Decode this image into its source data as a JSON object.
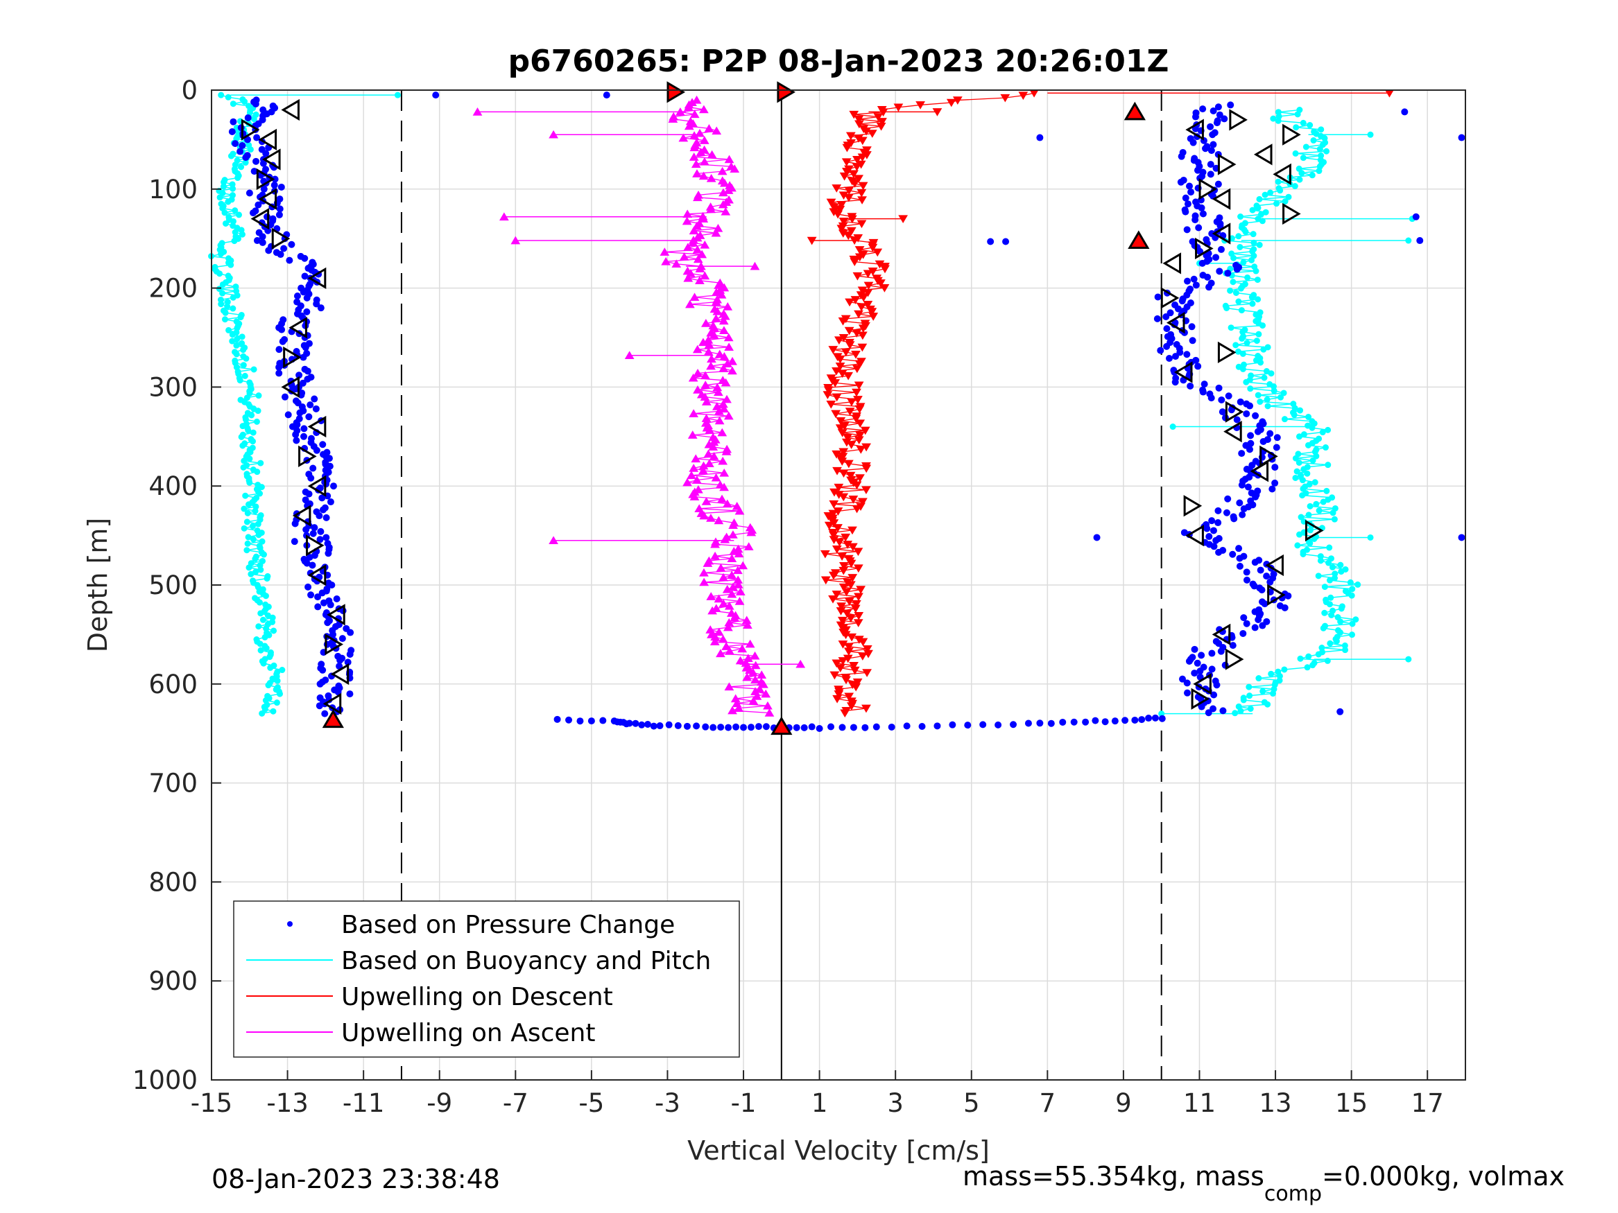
{
  "chart_data": {
    "type": "scatter",
    "title": "p6760265: P2P 08-Jan-2023 20:26:01Z",
    "xlabel": "Vertical Velocity [cm/s]",
    "ylabel": "Depth [m]",
    "xlim": [
      -15,
      18
    ],
    "ylim": [
      1000,
      0
    ],
    "y_reversed": true,
    "xticks": [
      -15,
      -13,
      -11,
      -9,
      -7,
      -5,
      -3,
      -1,
      1,
      3,
      5,
      7,
      9,
      11,
      13,
      15,
      17
    ],
    "xtick_labels": [
      "-15",
      "-13",
      "-11",
      "-9",
      "-7",
      "-5",
      "-3",
      "-1",
      "1",
      "3",
      "5",
      "7",
      "9",
      "11",
      "13",
      "15",
      "17"
    ],
    "yticks": [
      0,
      100,
      200,
      300,
      400,
      500,
      600,
      700,
      800,
      900,
      1000
    ],
    "ytick_labels": [
      "0",
      "100",
      "200",
      "300",
      "400",
      "500",
      "600",
      "700",
      "800",
      "900",
      "1000"
    ],
    "grid": true,
    "legend_position": "bottom-left",
    "reference_lines": [
      {
        "x": -10,
        "style": "dashed",
        "color": "#000000"
      },
      {
        "x": 0,
        "style": "solid",
        "color": "#000000"
      },
      {
        "x": 10,
        "style": "dashed",
        "color": "#000000"
      }
    ],
    "series": [
      {
        "name": "Based on Pressure Change",
        "color": "#0000ff",
        "marker": "dot",
        "descent_profile": {
          "depth": [
            10,
            40,
            80,
            120,
            160,
            190,
            240,
            300,
            350,
            400,
            450,
            500,
            550,
            600,
            630
          ],
          "x": [
            -13.6,
            -14.2,
            -13.6,
            -13.6,
            -13.3,
            -12.2,
            -12.8,
            -12.8,
            -12.4,
            -12.2,
            -12.4,
            -12.2,
            -11.7,
            -11.7,
            -11.9
          ]
        },
        "ascent_profile": {
          "depth": [
            630,
            600,
            560,
            520,
            480,
            450,
            400,
            350,
            320,
            290,
            240,
            210,
            180,
            150,
            110,
            80,
            40,
            15
          ],
          "x": [
            11.2,
            11.0,
            11.4,
            13.0,
            12.4,
            11.0,
            12.6,
            12.6,
            11.9,
            10.5,
            10.4,
            10.3,
            11.6,
            11.2,
            11.0,
            11.0,
            11.0,
            11.5
          ]
        },
        "bottom_points": {
          "depth": [
            636,
            638,
            640,
            642,
            643,
            643,
            644,
            644,
            643,
            642,
            640,
            638,
            636,
            634
          ],
          "x": [
            -5.9,
            -4.4,
            -4.0,
            -3.2,
            -2.0,
            -1.0,
            0.0,
            1.0,
            2.5,
            4.5,
            6.5,
            8.0,
            9.3,
            10.2
          ]
        },
        "outliers": {
          "depth": [
            5,
            5,
            48,
            153,
            153,
            128,
            22,
            452,
            452,
            628,
            48,
            152
          ],
          "x": [
            -9.1,
            -4.6,
            6.8,
            5.5,
            5.9,
            16.7,
            16.4,
            8.3,
            17.9,
            14.7,
            17.9,
            16.8
          ]
        }
      },
      {
        "name": "Based on Buoyancy and Pitch",
        "color": "#00ffff",
        "marker": "circle",
        "descent_profile": {
          "depth": [
            5,
            20,
            60,
            100,
            150,
            160,
            200,
            250,
            300,
            350,
            400,
            450,
            500,
            550,
            600,
            630
          ],
          "x": [
            -14.5,
            -14.0,
            -14.2,
            -14.6,
            -14.3,
            -14.8,
            -14.6,
            -14.3,
            -14.0,
            -14.0,
            -13.9,
            -13.9,
            -13.7,
            -13.6,
            -13.3,
            -13.5
          ]
        },
        "ascent_profile": {
          "depth": [
            630,
            600,
            570,
            540,
            500,
            460,
            420,
            380,
            350,
            300,
            250,
            200,
            150,
            110,
            80,
            50,
            20
          ],
          "x": [
            12.4,
            12.6,
            14.3,
            14.7,
            14.7,
            14.0,
            14.1,
            13.9,
            14.1,
            12.6,
            12.3,
            12.1,
            12.1,
            12.8,
            13.7,
            14.0,
            13.2
          ]
        },
        "spikes": {
          "depth": [
            5,
            45,
            130,
            152,
            175,
            340,
            452,
            575,
            630
          ],
          "x": [
            -10.1,
            15.5,
            16.6,
            16.5,
            11.0,
            10.3,
            15.5,
            16.5,
            10.0
          ]
        }
      },
      {
        "name": "Upwelling on Descent",
        "color": "#ff0000",
        "marker": "triangle-down",
        "profile": {
          "depth": [
            3,
            20,
            50,
            100,
            130,
            150,
            190,
            250,
            300,
            350,
            400,
            450,
            500,
            550,
            600,
            630
          ],
          "x": [
            7.0,
            2.3,
            2.2,
            1.8,
            1.6,
            2.0,
            2.4,
            1.8,
            1.6,
            1.9,
            1.8,
            1.6,
            1.6,
            2.0,
            1.8,
            2.0
          ]
        },
        "spikes": {
          "depth": [
            3,
            22,
            130,
            152
          ],
          "x": [
            16.0,
            4.1,
            3.2,
            0.8
          ]
        }
      },
      {
        "name": "Upwelling on Ascent",
        "color": "#ff00ff",
        "marker": "triangle-up",
        "profile": {
          "depth": [
            630,
            600,
            560,
            520,
            480,
            450,
            400,
            350,
            300,
            250,
            200,
            170,
            130,
            100,
            60,
            30,
            10
          ],
          "x": [
            -0.8,
            -1.0,
            -1.2,
            -1.6,
            -1.5,
            -1.2,
            -2.0,
            -1.8,
            -1.8,
            -1.8,
            -2.0,
            -2.7,
            -2.0,
            -1.6,
            -1.9,
            -2.4,
            -2.7
          ]
        },
        "spikes": {
          "depth": [
            22,
            45,
            128,
            152,
            455,
            268,
            178,
            580
          ],
          "x": [
            -8.0,
            -6.0,
            -7.3,
            -7.0,
            -6.0,
            -4.0,
            -0.7,
            0.5
          ]
        }
      }
    ],
    "event_markers": {
      "descent_triangles": {
        "depth": [
          20,
          40,
          50,
          70,
          90,
          110,
          130,
          150,
          190,
          240,
          270,
          300,
          340,
          370,
          400,
          430,
          460,
          490,
          530,
          560,
          590,
          620
        ],
        "x": [
          -12.9,
          -14.0,
          -13.5,
          -13.4,
          -13.6,
          -13.5,
          -13.7,
          -13.2,
          -12.2,
          -12.7,
          -12.9,
          -12.9,
          -12.2,
          -12.5,
          -12.2,
          -12.6,
          -12.3,
          -12.2,
          -11.7,
          -11.8,
          -11.6,
          -11.8
        ]
      },
      "ascent_triangles": {
        "depth": [
          30,
          40,
          45,
          65,
          75,
          85,
          100,
          110,
          125,
          145,
          160,
          175,
          210,
          235,
          265,
          285,
          325,
          345,
          370,
          385,
          420,
          450,
          445,
          480,
          510,
          550,
          575,
          600,
          615
        ],
        "x": [
          12.0,
          10.9,
          13.4,
          12.7,
          11.7,
          13.2,
          11.2,
          11.6,
          13.4,
          11.6,
          11.1,
          10.3,
          10.2,
          10.4,
          11.7,
          10.6,
          11.9,
          11.9,
          12.8,
          12.6,
          10.8,
          10.9,
          14.0,
          13.0,
          13.0,
          11.6,
          11.9,
          11.1,
          11.0
        ]
      },
      "red_filled": {
        "depth": [
          2,
          22,
          152,
          636,
          643
        ],
        "x": [
          -2.8,
          9.3,
          9.4,
          -11.8,
          0.0
        ]
      }
    }
  },
  "legend": {
    "items": [
      {
        "label": "Based on Pressure Change",
        "color": "#0000ff",
        "style": "dot"
      },
      {
        "label": "Based on Buoyancy and Pitch",
        "color": "#00ffff",
        "style": "line"
      },
      {
        "label": "Upwelling on Descent",
        "color": "#ff0000",
        "style": "line"
      },
      {
        "label": "Upwelling on Ascent",
        "color": "#ff00ff",
        "style": "line"
      }
    ]
  },
  "footer": {
    "timestamp": "08-Jan-2023 23:38:48",
    "mass_text_before": "mass=55.354kg, mass",
    "mass_subscript": "comp",
    "mass_text_after": "=0.000kg, volmax"
  }
}
